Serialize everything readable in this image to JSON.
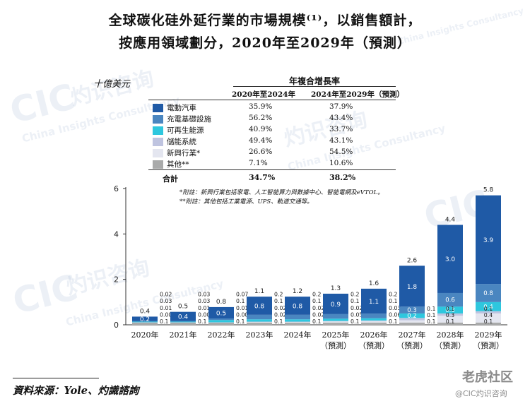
{
  "title_line1": "全球碳化硅外延行業的市場規模⁽¹⁾，以銷售額計，",
  "title_line2": "按應用領域劃分，2020年至2029年（預測）",
  "unit": "十億美元",
  "cagr_header": "年複合增長率",
  "cagr_col_a": "2020年至2024年",
  "cagr_col_b": "2024年至2029年（預測）",
  "total_label": "合計",
  "total_cagr_a": "34.7%",
  "total_cagr_b": "38.2%",
  "note1": "*附註：新興行業包括家電、人工智能算力與數據中心、智能電網及eVTOL。",
  "note2": "**附註：其他包括工業電源、UPS、軌道交通等。",
  "source": "資料來源：Yole、灼識諮詢",
  "watermark_cn": "灼识咨询",
  "watermark_en": "China Insights Consultancy",
  "watermark_logo": "CIC",
  "brand_mark": "老虎社区",
  "brand_sub": "@CIC灼识咨询",
  "colors": {
    "ev": "#1f5aa6",
    "charging": "#4a86c0",
    "renewable": "#2ec7de",
    "storage": "#bfc4e0",
    "emerging": "#e4e6f0",
    "other": "#a9aaaa"
  },
  "chart_data": {
    "type": "bar",
    "stacked": true,
    "categories": [
      "2020年",
      "2021年",
      "2022年",
      "2023年",
      "2024年",
      "2025年（預測）",
      "2026年（預測）",
      "2027年（預測）",
      "2028年（預測）",
      "2029年（預測）"
    ],
    "y_ticks": [
      "0",
      "2",
      "4",
      "6"
    ],
    "ylim": [
      0,
      6
    ],
    "totals": [
      "0.4",
      "0.5",
      "0.8",
      "1.1",
      "1.2",
      "1.3",
      "1.6",
      "2.6",
      "4.4",
      "5.8"
    ],
    "series": [
      {
        "name": "電動汽車",
        "cagr_a": "35.9%",
        "cagr_b": "37.9%",
        "values": [
          0.2,
          0.4,
          0.5,
          0.8,
          0.8,
          0.9,
          1.1,
          1.8,
          3.0,
          3.9
        ],
        "labels": [
          "0.2",
          "0.4",
          "0.5",
          "0.8",
          "0.8",
          "0.9",
          "1.1",
          "1.8",
          "3.0",
          "3.9"
        ]
      },
      {
        "name": "充電基礎設施",
        "cagr_a": "56.2%",
        "cagr_b": "43.4%",
        "values": [
          0.02,
          0.03,
          0.07,
          0.2,
          0.2,
          0.2,
          0.2,
          0.3,
          0.6,
          0.8
        ],
        "labels": [
          "0.02",
          "0.03",
          "0.07",
          "0.2",
          "0.2",
          "0.2",
          "0.2",
          "0.3",
          "0.6",
          "0.8"
        ]
      },
      {
        "name": "可再生能源",
        "cagr_a": "40.9%",
        "cagr_b": "33.7%",
        "values": [
          0.03,
          0.03,
          0.1,
          0.1,
          0.1,
          0.1,
          0.1,
          0.2,
          0.3,
          0.4
        ],
        "labels": [
          "0.03",
          "0.03",
          "0.1",
          "0.1",
          "0.1",
          "0.1",
          "0.1",
          "0.2",
          "0.3",
          "0.4"
        ]
      },
      {
        "name": "儲能系統",
        "cagr_a": "49.4%",
        "cagr_b": "43.1%",
        "values": [
          0.01,
          0.01,
          0.01,
          0.02,
          0.02,
          0.02,
          0.03,
          0.1,
          0.1,
          0.1
        ],
        "labels": [
          "0.01",
          "0.01",
          "0.01",
          "0.02",
          "0.02",
          "0.02",
          "0.03",
          "0.1",
          "0.1",
          "0.1"
        ]
      },
      {
        "name": "新興行業*",
        "cagr_a": "26.6%",
        "cagr_b": "54.5%",
        "values": [
          0.0,
          0.0,
          0.0,
          0.02,
          0.02,
          0.05,
          0.06,
          0.1,
          0.3,
          0.4
        ],
        "labels": [
          "0.00",
          "0.00",
          "0.00",
          "0.02",
          "0.02",
          "0.05",
          "0.06",
          "0.1",
          "0.3",
          "0.4"
        ]
      },
      {
        "name": "其他**",
        "cagr_a": "7.1%",
        "cagr_b": "10.6%",
        "values": [
          0.1,
          0.1,
          0.1,
          0.1,
          0.1,
          0.1,
          0.1,
          0.1,
          0.1,
          0.1
        ],
        "labels": [
          "0.1",
          "0.1",
          "0.1",
          "0.1",
          "0.1",
          "0.1",
          "0.1",
          "0.1",
          "0.1",
          "0.1"
        ]
      }
    ]
  }
}
